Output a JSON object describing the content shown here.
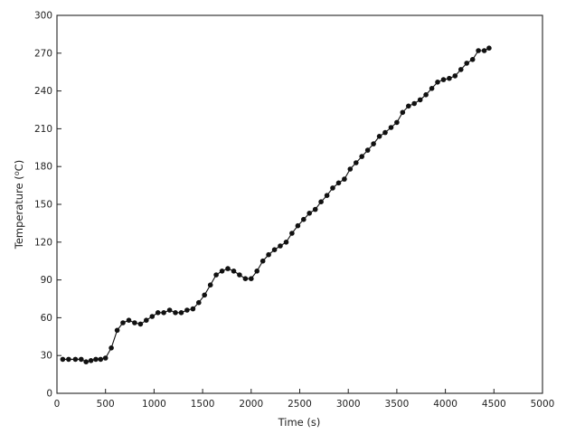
{
  "chart_data": {
    "type": "line",
    "title": "",
    "xlabel": "Time (s)",
    "ylabel": "Temperature (°C)",
    "ylabel_main": "Temperature (",
    "ylabel_sup": "o",
    "ylabel_unit": "C)",
    "xlim": [
      0,
      5000
    ],
    "ylim": [
      0,
      300
    ],
    "xticks": [
      0,
      500,
      1000,
      1500,
      2000,
      2500,
      3000,
      3500,
      4000,
      4500,
      5000
    ],
    "yticks": [
      0,
      30,
      60,
      90,
      120,
      150,
      180,
      210,
      240,
      270,
      300
    ],
    "grid": false,
    "legend": "none",
    "marker": "filled-circle",
    "color": "#111111",
    "series": [
      {
        "x": [
          60,
          120,
          190,
          250,
          300,
          350,
          400,
          450,
          500,
          560,
          620,
          680,
          740,
          800,
          860,
          920,
          980,
          1040,
          1100,
          1160,
          1220,
          1280,
          1340,
          1400,
          1460,
          1520,
          1580,
          1640,
          1700,
          1760,
          1820,
          1880,
          1940,
          2000,
          2060,
          2120,
          2180,
          2240,
          2300,
          2360,
          2420,
          2480,
          2540,
          2600,
          2660,
          2720,
          2780,
          2840,
          2900,
          2960,
          3020,
          3080,
          3140,
          3200,
          3260,
          3320,
          3380,
          3440,
          3500,
          3560,
          3620,
          3680,
          3740,
          3800,
          3860,
          3920,
          3980,
          4040,
          4100,
          4160,
          4220,
          4280,
          4340,
          4400,
          4450
        ],
        "y": [
          27,
          27,
          27,
          27,
          25,
          26,
          27,
          27,
          28,
          36,
          50,
          56,
          58,
          56,
          55,
          58,
          61,
          64,
          64,
          66,
          64,
          64,
          66,
          67,
          72,
          78,
          86,
          94,
          97,
          99,
          97,
          94,
          91,
          91,
          97,
          105,
          110,
          114,
          117,
          120,
          127,
          133,
          138,
          143,
          146,
          152,
          157,
          163,
          167,
          170,
          178,
          183,
          188,
          193,
          198,
          204,
          207,
          211,
          215,
          223,
          228,
          230,
          233,
          237,
          242,
          247,
          249,
          250,
          252,
          257,
          262,
          265,
          272,
          272,
          274
        ]
      }
    ]
  }
}
